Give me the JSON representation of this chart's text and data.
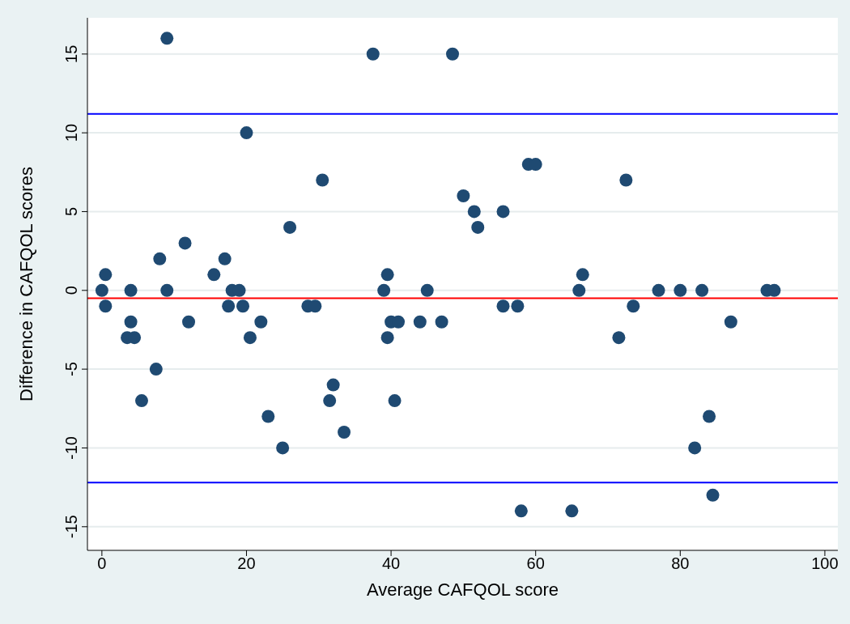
{
  "chart_data": {
    "type": "scatter",
    "xlabel": "Average CAFQOL score",
    "ylabel": "Difference in CAFQOL scores",
    "xlim": [
      -2,
      101.8
    ],
    "xticks": [
      0,
      20,
      40,
      60,
      80,
      100
    ],
    "ylim": [
      -16.5,
      17.3
    ],
    "yticks": [
      -15,
      -10,
      -5,
      0,
      5,
      10,
      15
    ],
    "grid": "y",
    "marker": "circle",
    "series": [
      {
        "color": "#1f4a72",
        "x": [
          0,
          0.5,
          0.5,
          3.5,
          4.5,
          4,
          4,
          5.5,
          7.5,
          8,
          9,
          9,
          11.5,
          12,
          15.5,
          17,
          17.5,
          18,
          19,
          19.5,
          20,
          20.5,
          22,
          23,
          25,
          26,
          28.5,
          29.5,
          30.5,
          31.5,
          32,
          33.5,
          37.5,
          48.5,
          50,
          51.5,
          52,
          55.5,
          59,
          60,
          39,
          39.5,
          45,
          40,
          41,
          39.5,
          44,
          47,
          40.5,
          55.5,
          57.5,
          58,
          65,
          66,
          66.5,
          72.5,
          71.5,
          73.5,
          77,
          80,
          83,
          82,
          84,
          84.5,
          87,
          92,
          93
        ],
        "values": [
          0,
          1,
          -1,
          -3,
          -3,
          0,
          -2,
          -7,
          -5,
          2,
          16,
          0,
          3,
          -2,
          1,
          2,
          -1,
          0,
          0,
          -1,
          10,
          -3,
          -2,
          -8,
          -10,
          4,
          -1,
          -1,
          7,
          -7,
          -6,
          -9,
          15,
          15,
          6,
          5,
          4,
          5,
          8,
          8,
          0,
          1,
          0,
          -2,
          -2,
          -3,
          -2,
          -2,
          -7,
          -1,
          -1,
          -14,
          -14,
          0,
          1,
          7,
          -3,
          -1,
          0,
          0,
          0,
          -10,
          -8,
          -13,
          -2,
          0,
          0
        ]
      }
    ],
    "ref_lines": [
      {
        "axis": "y",
        "value": 11.2,
        "color": "#0000ff"
      },
      {
        "axis": "y",
        "value": -0.5,
        "color": "#ff0000"
      },
      {
        "axis": "y",
        "value": -12.2,
        "color": "#0000ff"
      }
    ]
  }
}
